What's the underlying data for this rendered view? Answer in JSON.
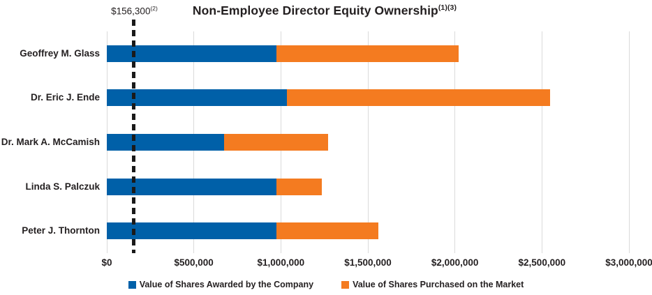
{
  "title": {
    "text": "Non-Employee Director Equity Ownership",
    "superscript": "(1)(3)"
  },
  "reference_label": {
    "text": "$156,300",
    "superscript": "(2)"
  },
  "colors": {
    "awarded_blue": "#0060A8",
    "purchased_orange": "#F47B20",
    "gridline": "#DADADA",
    "reference_line": "#1A1A1A",
    "text": "#231F20"
  },
  "chart_data": {
    "type": "bar",
    "orientation": "horizontal",
    "stacked": true,
    "title": "Non-Employee Director Equity Ownership(1)(3)",
    "categories": [
      "Geoffrey M. Glass",
      "Dr. Eric J. Ende",
      "Dr. Mark A. McCamish",
      "Linda S. Palczuk",
      "Peter J. Thornton"
    ],
    "series": [
      {
        "name": "Value of Shares Awarded by the Company",
        "color": "#0060A8",
        "values": [
          975000,
          1035000,
          675000,
          975000,
          975000
        ]
      },
      {
        "name": "Value of Shares Purchased on the Market",
        "color": "#F47B20",
        "values": [
          1045000,
          1510000,
          595000,
          260000,
          585000
        ]
      }
    ],
    "totals": [
      2020000,
      2545000,
      1270000,
      1235000,
      1560000
    ],
    "xlim": [
      0,
      3000000
    ],
    "x_tick_values": [
      0,
      500000,
      1000000,
      1500000,
      2000000,
      2500000,
      3000000
    ],
    "x_tick_labels": [
      "$0",
      "$500,000",
      "$1,000,000",
      "$1,500,000",
      "$2,000,000",
      "$2,500,000",
      "$3,000,000"
    ],
    "reference_line": {
      "value": 156300,
      "label": "$156,300",
      "label_superscript": "(2)"
    },
    "grid": true,
    "legend_position": "bottom"
  },
  "legend": {
    "items": [
      {
        "label": "Value of Shares Awarded by the Company",
        "color": "#0060A8"
      },
      {
        "label": "Value of Shares Purchased on the Market",
        "color": "#F47B20"
      }
    ]
  }
}
